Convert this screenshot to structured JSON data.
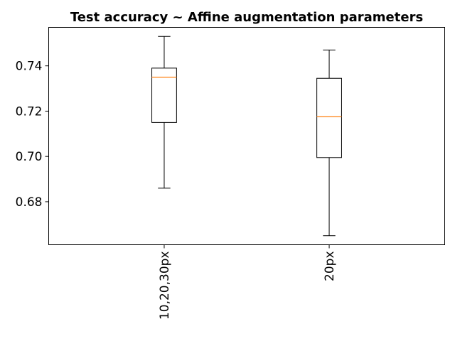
{
  "chart_data": {
    "type": "box",
    "title": "Test accuracy ~ Affine augmentation parameters",
    "xlabel": "",
    "ylabel": "",
    "categories": [
      "10,20,30px",
      "20px"
    ],
    "boxes": [
      {
        "category": "10,20,30px",
        "whislo": 0.686,
        "q1": 0.715,
        "median": 0.735,
        "q3": 0.739,
        "whishi": 0.753
      },
      {
        "category": "20px",
        "whislo": 0.665,
        "q1": 0.6995,
        "median": 0.7175,
        "q3": 0.7345,
        "whishi": 0.747
      }
    ],
    "yticks": [
      0.68,
      0.7,
      0.72,
      0.74
    ],
    "ytick_labels": [
      "0.68",
      "0.70",
      "0.72",
      "0.74"
    ],
    "ylim": [
      0.661,
      0.757
    ],
    "grid": false,
    "legend": "none",
    "colors": {
      "box": "#000000",
      "median": "#ff7f0e",
      "whisker": "#000000"
    }
  }
}
